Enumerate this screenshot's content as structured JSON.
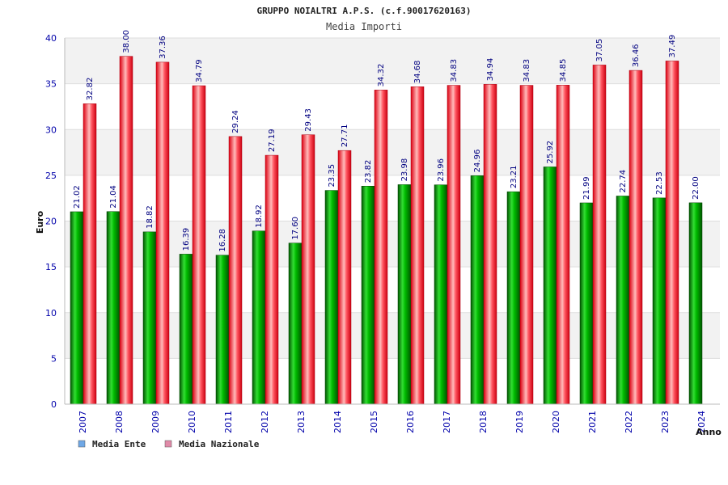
{
  "chart_data": {
    "type": "bar",
    "title": "GRUPPO NOIALTRI A.P.S. (c.f.90017620163)",
    "subtitle": "Media Importi",
    "xlabel": "Anno",
    "ylabel": "Euro",
    "ylim": [
      0,
      40
    ],
    "yticks": [
      0,
      5,
      10,
      15,
      20,
      25,
      30,
      35,
      40
    ],
    "grid": true,
    "legend_position": "bottom-left",
    "categories": [
      "2007",
      "2008",
      "2009",
      "2010",
      "2011",
      "2012",
      "2013",
      "2014",
      "2015",
      "2016",
      "2017",
      "2018",
      "2019",
      "2020",
      "2021",
      "2022",
      "2023",
      "2024"
    ],
    "series": [
      {
        "name": "Media Ente",
        "legend_color": "#6fa8e6",
        "bar_color": "#00aa00",
        "values": [
          21.02,
          21.04,
          18.82,
          16.39,
          16.28,
          18.92,
          17.6,
          23.35,
          23.82,
          23.98,
          23.96,
          24.96,
          23.21,
          25.92,
          21.99,
          22.74,
          22.53,
          22.0
        ],
        "labels": [
          "21.02",
          "21.04",
          "18.82",
          "16.39",
          "16.28",
          "18.92",
          "17.60",
          "23.35",
          "23.82",
          "23.98",
          "23.96",
          "24.96",
          "23.21",
          "25.92",
          "21.99",
          "22.74",
          "22.53",
          "22.00"
        ]
      },
      {
        "name": "Media Nazionale",
        "legend_color": "#e08aa8",
        "bar_color": "#ee2233",
        "values": [
          32.82,
          38.0,
          37.36,
          34.79,
          29.24,
          27.19,
          29.43,
          27.71,
          34.32,
          34.68,
          34.83,
          34.94,
          34.83,
          34.85,
          37.05,
          36.46,
          37.49,
          null
        ],
        "labels": [
          "32.82",
          "38.00",
          "37.36",
          "34.79",
          "29.24",
          "27.19",
          "29.43",
          "27.71",
          "34.32",
          "34.68",
          "34.83",
          "34.94",
          "34.83",
          "34.85",
          "37.05",
          "36.46",
          "37.49",
          ""
        ]
      }
    ]
  }
}
